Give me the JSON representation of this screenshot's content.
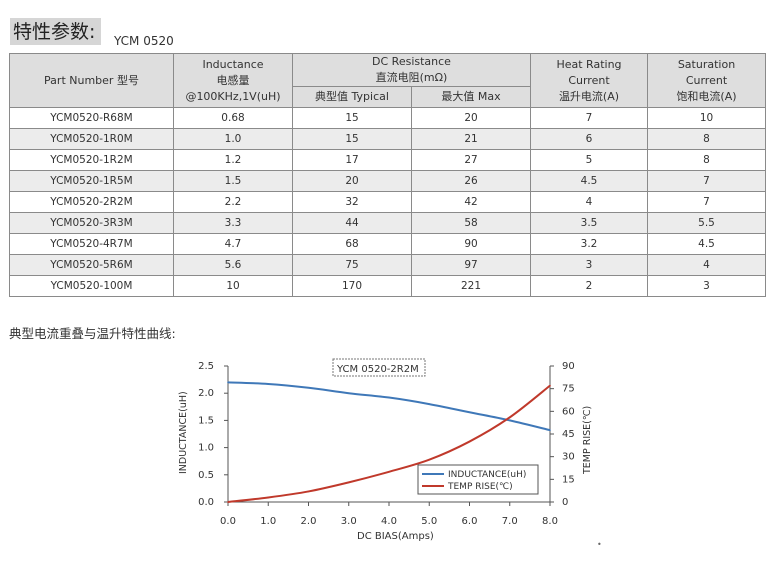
{
  "header": {
    "title": "特性参数:",
    "model": "YCM 0520"
  },
  "table": {
    "headers": {
      "part_number": "Part Number  型号",
      "inductance_en": "Inductance",
      "inductance_cn": "电感量",
      "inductance_cond": "@100KHz,1V(uH)",
      "dcr_en": "DC Resistance",
      "dcr_cn": "直流电阻(mΩ)",
      "dcr_typ": "典型值 Typical",
      "dcr_max": "最大值 Max",
      "heat_l1": "Heat Rating",
      "heat_l2": "Current",
      "heat_cn": "温升电流(A)",
      "sat_l1": "Saturation",
      "sat_l2": "Current",
      "sat_cn": "饱和电流(A)"
    },
    "rows": [
      [
        "YCM0520-R68M",
        "0.68",
        "15",
        "20",
        "7",
        "10"
      ],
      [
        "YCM0520-1R0M",
        "1.0",
        "15",
        "21",
        "6",
        "8"
      ],
      [
        "YCM0520-1R2M",
        "1.2",
        "17",
        "27",
        "5",
        "8"
      ],
      [
        "YCM0520-1R5M",
        "1.5",
        "20",
        "26",
        "4.5",
        "7"
      ],
      [
        "YCM0520-2R2M",
        "2.2",
        "32",
        "42",
        "4",
        "7"
      ],
      [
        "YCM0520-3R3M",
        "3.3",
        "44",
        "58",
        "3.5",
        "5.5"
      ],
      [
        "YCM0520-4R7M",
        "4.7",
        "68",
        "90",
        "3.2",
        "4.5"
      ],
      [
        "YCM0520-5R6M",
        "5.6",
        "75",
        "97",
        "3",
        "4"
      ],
      [
        "YCM0520-100M",
        "10",
        "170",
        "221",
        "2",
        "3"
      ]
    ]
  },
  "curves_caption": "典型电流重叠与温升特性曲线:",
  "chart_data": {
    "type": "line",
    "title": "YCM 0520-2R2M",
    "xlabel": "DC BIAS(Amps)",
    "ylabel": "INDUCTANCE(uH)",
    "y2label": "TEMP RISE(℃)",
    "xlim": [
      0,
      8
    ],
    "ylim": [
      0,
      2.5
    ],
    "y2lim": [
      0,
      90
    ],
    "x_ticks": [
      "0.0",
      "1.0",
      "2.0",
      "3.0",
      "4.0",
      "5.0",
      "6.0",
      "7.0",
      "8.0"
    ],
    "y_ticks": [
      "0.0",
      "0.5",
      "1.0",
      "1.5",
      "2.0",
      "2.5"
    ],
    "y2_ticks": [
      "0",
      "15",
      "30",
      "45",
      "60",
      "75",
      "90"
    ],
    "grid": false,
    "legend": "bottom-right",
    "series": [
      {
        "name": "INDUCTANCE(uH)",
        "axis": "left",
        "color": "#3f78b8",
        "x": [
          0,
          1,
          2,
          3,
          4,
          5,
          6,
          7,
          8
        ],
        "values": [
          2.2,
          2.17,
          2.1,
          2.0,
          1.92,
          1.8,
          1.65,
          1.5,
          1.32
        ]
      },
      {
        "name": "TEMP RISE(℃)",
        "axis": "right",
        "color": "#c0392b",
        "x": [
          0,
          1,
          2,
          3,
          4,
          5,
          6,
          7,
          8
        ],
        "values": [
          0,
          3,
          7,
          13,
          20,
          28,
          40,
          56,
          77
        ]
      }
    ]
  }
}
